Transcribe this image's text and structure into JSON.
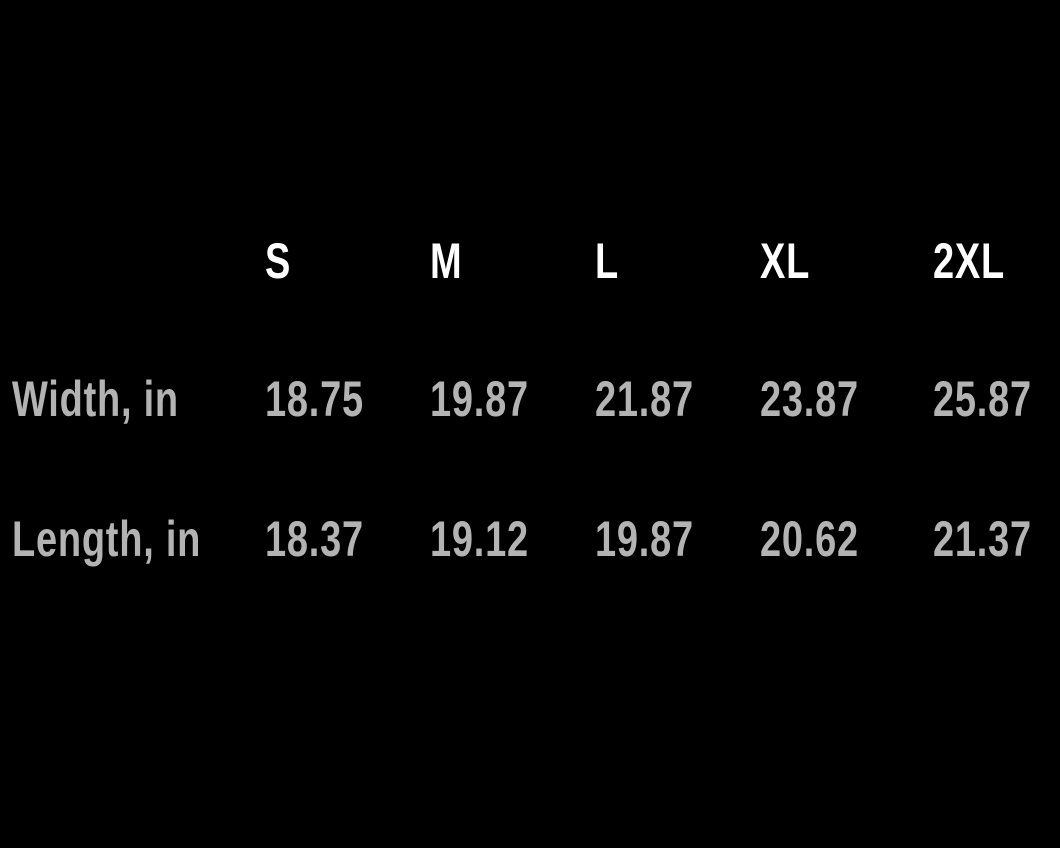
{
  "colors": {
    "background": "#000000",
    "header_text": "#ffffff",
    "body_text": "#b3b3b3"
  },
  "table": {
    "columns": [
      "S",
      "M",
      "L",
      "XL",
      "2XL"
    ],
    "rows": [
      {
        "label": "Width, in",
        "values": [
          "18.75",
          "19.87",
          "21.87",
          "23.87",
          "25.87"
        ]
      },
      {
        "label": "Length, in",
        "values": [
          "18.37",
          "19.12",
          "19.87",
          "20.62",
          "21.37"
        ]
      }
    ]
  }
}
